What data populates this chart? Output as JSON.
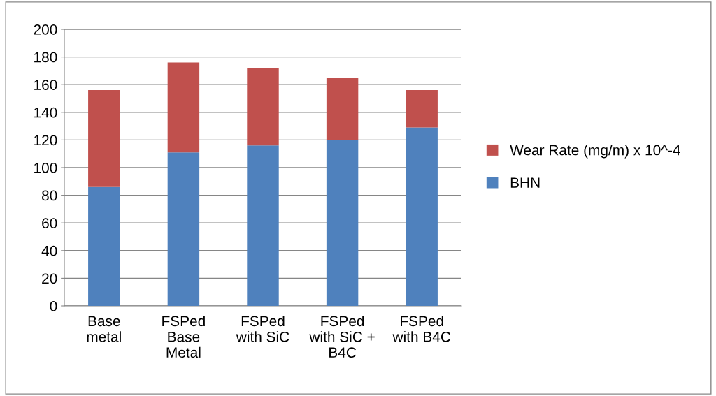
{
  "chart_data": {
    "type": "bar",
    "stacked": true,
    "categories": [
      "Base\nmetal",
      "FSPed\nBase\nMetal",
      "FSPed\nwith SiC",
      "FSPed\nwith SiC +\nB4C",
      "FSPed\nwith B4C"
    ],
    "series": [
      {
        "name": "BHN",
        "color": "#4f81bd",
        "values": [
          86,
          111,
          116,
          120,
          129
        ]
      },
      {
        "name": "Wear Rate (mg/m) x 10^-4",
        "color": "#c0504d",
        "values": [
          70,
          65,
          56,
          45,
          27
        ]
      }
    ],
    "ylim": [
      0,
      200
    ],
    "yticks": [
      0,
      20,
      40,
      60,
      80,
      100,
      120,
      140,
      160,
      180,
      200
    ],
    "grid": "y",
    "legend": "right"
  }
}
